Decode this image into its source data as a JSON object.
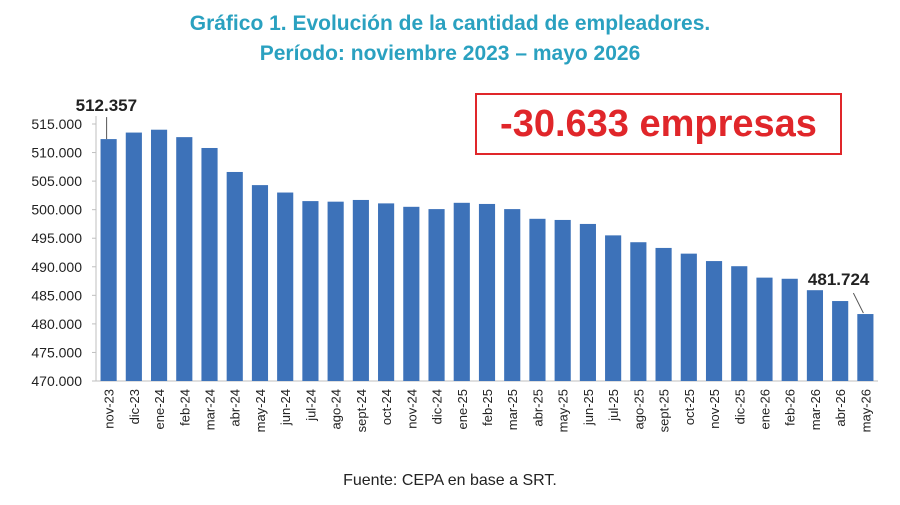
{
  "title_line1": "Gráfico 1. Evolución de la cantidad de empleadores.",
  "title_line2": "Período: noviembre 2023 – mayo 2026",
  "callout": "-30.633 empresas",
  "source": "Fuente: CEPA en base a SRT.",
  "colors": {
    "bar": "#3d72b9",
    "title": "#2aa1c0",
    "callout": "#e0262a"
  },
  "chart_data": {
    "type": "bar",
    "categories": [
      "nov-23",
      "dic-23",
      "ene-24",
      "feb-24",
      "mar-24",
      "abr-24",
      "may-24",
      "jun-24",
      "jul-24",
      "ago-24",
      "sept-24",
      "oct-24",
      "nov-24",
      "dic-24",
      "ene-25",
      "feb-25",
      "mar-25",
      "abr-25",
      "may-25",
      "jun-25",
      "jul-25",
      "ago-25",
      "sept-25",
      "oct-25",
      "nov-25",
      "dic-25",
      "ene-26",
      "feb-26",
      "mar-26",
      "abr-26",
      "may-26"
    ],
    "values": [
      512357,
      513500,
      514000,
      512700,
      510800,
      506600,
      504300,
      503000,
      501500,
      501400,
      501700,
      501100,
      500500,
      500100,
      501200,
      501000,
      500100,
      498400,
      498200,
      497500,
      495500,
      494300,
      493300,
      492300,
      491000,
      490100,
      488100,
      487900,
      485900,
      484000,
      481724
    ],
    "ylim": [
      470000,
      515000
    ],
    "yticks": [
      470000,
      475000,
      480000,
      485000,
      490000,
      495000,
      500000,
      505000,
      510000,
      515000
    ],
    "ytick_labels": [
      "470.000",
      "475.000",
      "480.000",
      "485.000",
      "490.000",
      "495.000",
      "500.000",
      "505.000",
      "510.000",
      "515.000"
    ],
    "data_labels": [
      {
        "index": 0,
        "text": "512.357"
      },
      {
        "index": 30,
        "text": "481.724"
      }
    ],
    "grid": false,
    "legend": "none"
  }
}
